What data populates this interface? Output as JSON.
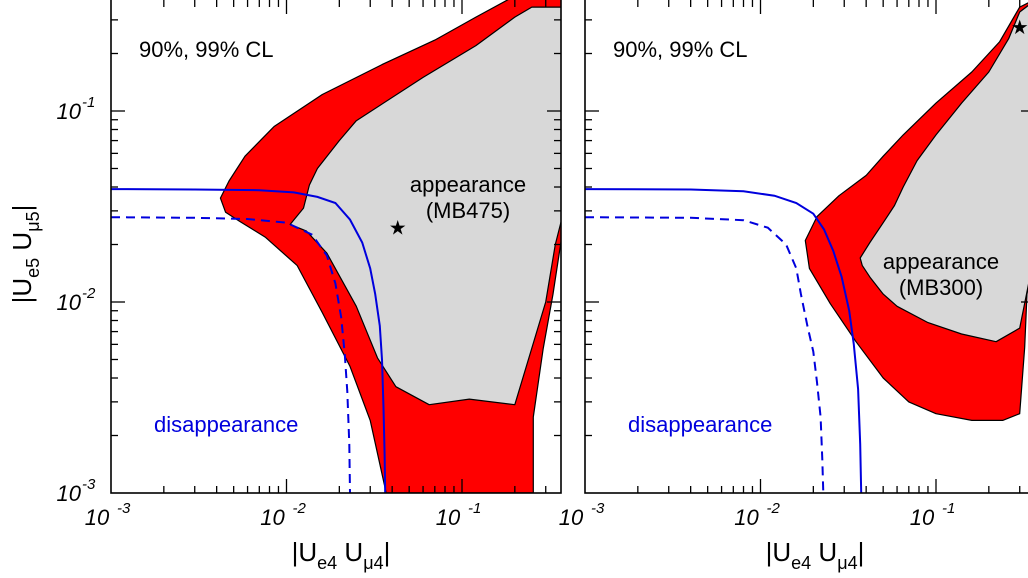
{
  "chart_data": [
    {
      "type": "area",
      "panel": "left",
      "annotation": "90%, 99% CL",
      "region_label": [
        "appearance",
        "(MB475)"
      ],
      "line_label": "disappearance",
      "xlabel": {
        "base": "|U",
        "sub1": "e4",
        "mid": " U",
        "sub2": "μ4",
        "end": "|"
      },
      "ylabel": {
        "base": "|U",
        "sub1": "e5",
        "mid": " U",
        "sub2": "μ5",
        "end": "|"
      },
      "xscale": "log",
      "yscale": "log",
      "xlim": [
        0.001,
        0.4
      ],
      "ylim": [
        0.001,
        0.35
      ],
      "x_ticks": [
        {
          "v": 0.001,
          "b": "10",
          "e": "-3"
        },
        {
          "v": 0.01,
          "b": "10",
          "e": "-2"
        },
        {
          "v": 0.1,
          "b": "10",
          "e": "-1"
        }
      ],
      "y_ticks": [
        {
          "v": 0.001,
          "b": "10",
          "e": "-3"
        },
        {
          "v": 0.01,
          "b": "10",
          "e": "-2"
        },
        {
          "v": 0.1,
          "b": "10",
          "e": "-1"
        }
      ],
      "colors": {
        "cl99": "#ff0000",
        "cl90": "#d8d8d8",
        "exclusion": "#0000dd"
      },
      "series": [
        {
          "level": "99% CL",
          "type": "area",
          "points": [
            [
              0.0042,
              0.035
            ],
            [
              0.0047,
              0.043
            ],
            [
              0.0058,
              0.058
            ],
            [
              0.0085,
              0.083
            ],
            [
              0.016,
              0.122
            ],
            [
              0.035,
              0.175
            ],
            [
              0.07,
              0.235
            ],
            [
              0.12,
              0.31
            ],
            [
              0.2,
              0.4
            ],
            [
              0.38,
              0.4
            ],
            [
              0.4,
              0.035
            ],
            [
              0.33,
              0.011
            ],
            [
              0.29,
              0.0057
            ],
            [
              0.255,
              0.0025
            ],
            [
              0.255,
              0.001
            ],
            [
              0.037,
              0.001
            ],
            [
              0.03,
              0.0024
            ],
            [
              0.023,
              0.0046
            ],
            [
              0.016,
              0.0088
            ],
            [
              0.0115,
              0.0155
            ],
            [
              0.0076,
              0.0218
            ],
            [
              0.0054,
              0.0265
            ],
            [
              0.0045,
              0.0295
            ]
          ]
        },
        {
          "level": "90% CL",
          "type": "area",
          "points": [
            [
              0.0105,
              0.0255
            ],
            [
              0.0125,
              0.031
            ],
            [
              0.0135,
              0.041
            ],
            [
              0.015,
              0.05
            ],
            [
              0.02,
              0.07
            ],
            [
              0.025,
              0.089
            ],
            [
              0.06,
              0.15
            ],
            [
              0.12,
              0.22
            ],
            [
              0.2,
              0.31
            ],
            [
              0.25,
              0.35
            ],
            [
              0.4,
              0.35
            ],
            [
              0.4,
              0.036
            ],
            [
              0.34,
              0.02
            ],
            [
              0.3,
              0.01
            ],
            [
              0.2,
              0.0029
            ],
            [
              0.11,
              0.0031
            ],
            [
              0.065,
              0.0029
            ],
            [
              0.042,
              0.0036
            ],
            [
              0.033,
              0.0051
            ],
            [
              0.025,
              0.0095
            ],
            [
              0.017,
              0.018
            ],
            [
              0.013,
              0.0235
            ]
          ]
        },
        {
          "level": "90% CL exclusion",
          "type": "line",
          "style": "solid",
          "points": [
            [
              0.001,
              0.039
            ],
            [
              0.003,
              0.0388
            ],
            [
              0.007,
              0.0385
            ],
            [
              0.011,
              0.0375
            ],
            [
              0.015,
              0.0355
            ],
            [
              0.019,
              0.033
            ],
            [
              0.023,
              0.027
            ],
            [
              0.027,
              0.0205
            ],
            [
              0.03,
              0.015
            ],
            [
              0.032,
              0.011
            ],
            [
              0.034,
              0.0075
            ],
            [
              0.035,
              0.005
            ],
            [
              0.0357,
              0.0028
            ],
            [
              0.0362,
              0.0016
            ],
            [
              0.0365,
              0.001
            ]
          ]
        },
        {
          "level": "99% CL exclusion",
          "type": "line",
          "style": "dashed",
          "points": [
            [
              0.001,
              0.0278
            ],
            [
              0.003,
              0.0276
            ],
            [
              0.006,
              0.0272
            ],
            [
              0.01,
              0.026
            ],
            [
              0.014,
              0.0225
            ],
            [
              0.017,
              0.0175
            ],
            [
              0.019,
              0.0125
            ],
            [
              0.0205,
              0.0083
            ],
            [
              0.0215,
              0.0053
            ],
            [
              0.0222,
              0.0034
            ],
            [
              0.0228,
              0.0018
            ],
            [
              0.023,
              0.001
            ]
          ]
        },
        {
          "level": "best fit",
          "type": "scatter",
          "points": [
            [
              0.043,
              0.0245
            ]
          ]
        }
      ]
    },
    {
      "type": "area",
      "panel": "right",
      "annotation": "90%, 99% CL",
      "region_label": [
        "appearance",
        "(MB300)"
      ],
      "line_label": "disappearance",
      "xlabel": {
        "base": "|U",
        "sub1": "e4",
        "mid": " U",
        "sub2": "μ4",
        "end": "|"
      },
      "xscale": "log",
      "yscale": "log",
      "xlim": [
        0.001,
        0.4
      ],
      "ylim": [
        0.001,
        0.35
      ],
      "x_ticks": [
        {
          "v": 0.001,
          "b": "10",
          "e": "-3"
        },
        {
          "v": 0.01,
          "b": "10",
          "e": "-2"
        },
        {
          "v": 0.1,
          "b": "10",
          "e": "-1"
        }
      ],
      "colors": {
        "cl99": "#ff0000",
        "cl90": "#d8d8d8",
        "exclusion": "#0000dd"
      },
      "series": [
        {
          "level": "99% CL",
          "type": "area",
          "points": [
            [
              0.3,
              0.35
            ],
            [
              0.4,
              0.4
            ],
            [
              0.4,
              0.036
            ],
            [
              0.36,
              0.017
            ],
            [
              0.33,
              0.011
            ],
            [
              0.32,
              0.0058
            ],
            [
              0.3,
              0.0026
            ],
            [
              0.24,
              0.0024
            ],
            [
              0.16,
              0.0024
            ],
            [
              0.1,
              0.0026
            ],
            [
              0.07,
              0.003
            ],
            [
              0.05,
              0.004
            ],
            [
              0.035,
              0.0062
            ],
            [
              0.025,
              0.0098
            ],
            [
              0.019,
              0.015
            ],
            [
              0.018,
              0.021
            ],
            [
              0.021,
              0.028
            ],
            [
              0.028,
              0.036
            ],
            [
              0.04,
              0.046
            ],
            [
              0.05,
              0.058
            ],
            [
              0.065,
              0.075
            ],
            [
              0.1,
              0.11
            ],
            [
              0.16,
              0.16
            ],
            [
              0.23,
              0.23
            ]
          ]
        },
        {
          "level": "90% CL",
          "type": "area",
          "points": [
            [
              0.3,
              0.33
            ],
            [
              0.34,
              0.36
            ],
            [
              0.4,
              0.4
            ],
            [
              0.4,
              0.032
            ],
            [
              0.37,
              0.021
            ],
            [
              0.34,
              0.013
            ],
            [
              0.3,
              0.0073
            ],
            [
              0.22,
              0.0062
            ],
            [
              0.14,
              0.0068
            ],
            [
              0.09,
              0.0078
            ],
            [
              0.06,
              0.0095
            ],
            [
              0.05,
              0.011
            ],
            [
              0.042,
              0.0135
            ],
            [
              0.038,
              0.0155
            ],
            [
              0.037,
              0.017
            ],
            [
              0.042,
              0.0205
            ],
            [
              0.05,
              0.026
            ],
            [
              0.058,
              0.032
            ],
            [
              0.065,
              0.04
            ],
            [
              0.078,
              0.055
            ],
            [
              0.1,
              0.075
            ],
            [
              0.14,
              0.11
            ],
            [
              0.2,
              0.16
            ],
            [
              0.26,
              0.24
            ]
          ]
        },
        {
          "level": "90% CL exclusion",
          "type": "line",
          "style": "solid",
          "points": [
            [
              0.001,
              0.039
            ],
            [
              0.004,
              0.0388
            ],
            [
              0.008,
              0.038
            ],
            [
              0.012,
              0.036
            ],
            [
              0.016,
              0.033
            ],
            [
              0.02,
              0.029
            ],
            [
              0.023,
              0.024
            ],
            [
              0.026,
              0.0185
            ],
            [
              0.029,
              0.0135
            ],
            [
              0.032,
              0.009
            ],
            [
              0.034,
              0.006
            ],
            [
              0.036,
              0.0035
            ],
            [
              0.037,
              0.0018
            ],
            [
              0.0375,
              0.001
            ]
          ]
        },
        {
          "level": "99% CL exclusion",
          "type": "line",
          "style": "dashed",
          "points": [
            [
              0.001,
              0.0278
            ],
            [
              0.004,
              0.0276
            ],
            [
              0.008,
              0.0268
            ],
            [
              0.011,
              0.0245
            ],
            [
              0.014,
              0.02
            ],
            [
              0.016,
              0.015
            ],
            [
              0.017,
              0.011
            ],
            [
              0.0185,
              0.0075
            ],
            [
              0.02,
              0.0055
            ],
            [
              0.021,
              0.0038
            ],
            [
              0.022,
              0.0025
            ],
            [
              0.0225,
              0.0015
            ],
            [
              0.0228,
              0.001
            ]
          ]
        },
        {
          "level": "best fit",
          "type": "scatter",
          "points": [
            [
              0.3,
              0.275
            ]
          ]
        }
      ]
    }
  ]
}
